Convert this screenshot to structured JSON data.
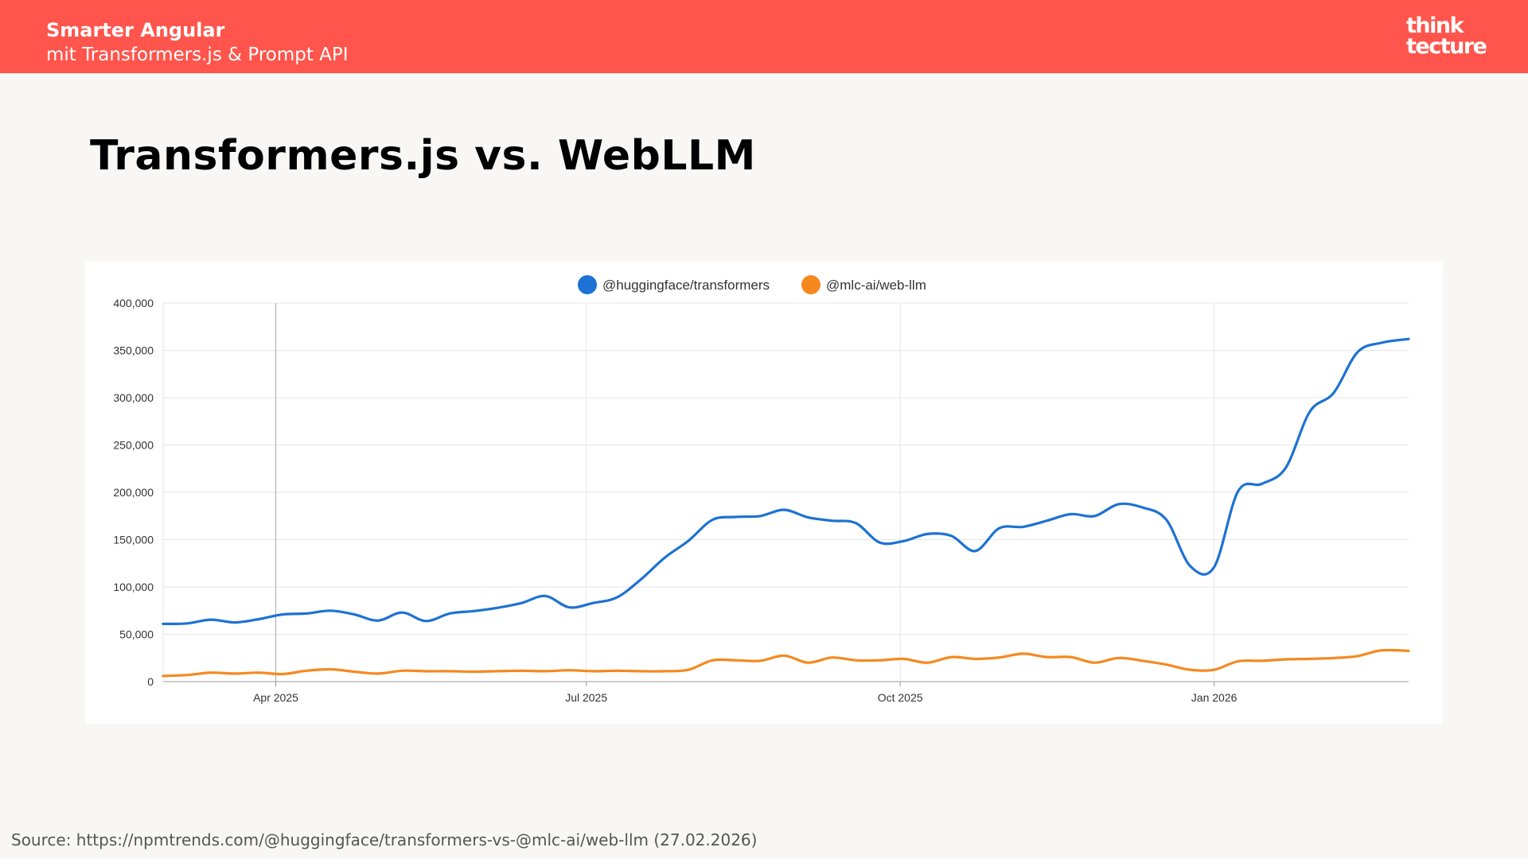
{
  "header": {
    "title": "Smarter Angular",
    "subtitle": "mit Transformers.js & Prompt API",
    "logo_line1": "think",
    "logo_line2": "tecture"
  },
  "slide": {
    "title": "Transformers.js vs. WebLLM",
    "source": "Source: https://npmtrends.com/@huggingface/transformers-vs-@mlc-ai/web-llm (27.02.2026)"
  },
  "colors": {
    "header": "#ff554c",
    "series_transformers": "#1d72d3",
    "series_webllm": "#f5891f"
  },
  "chart_data": {
    "type": "line",
    "x_range": [
      "2025-02-27",
      "2026-02-27"
    ],
    "ylim": [
      0,
      400000
    ],
    "y_ticks": [
      0,
      50000,
      100000,
      150000,
      200000,
      250000,
      300000,
      350000,
      400000
    ],
    "y_tick_labels": [
      "0",
      "50,000",
      "100,000",
      "150,000",
      "200,000",
      "250,000",
      "300,000",
      "350,000",
      "400,000"
    ],
    "x_ticks": [
      {
        "date": "2025-04-01",
        "label": "Apr 2025"
      },
      {
        "date": "2025-07-01",
        "label": "Jul 2025"
      },
      {
        "date": "2025-10-01",
        "label": "Oct 2025"
      },
      {
        "date": "2026-01-01",
        "label": "Jan 2026"
      }
    ],
    "grid": true,
    "legend_position": "top-center",
    "series": [
      {
        "name": "@huggingface/transformers",
        "color": "#1d72d3",
        "points": [
          [
            "2025-02-27",
            61000
          ],
          [
            "2025-03-06",
            61500
          ],
          [
            "2025-03-13",
            65500
          ],
          [
            "2025-03-20",
            62500
          ],
          [
            "2025-03-27",
            66000
          ],
          [
            "2025-04-03",
            71000
          ],
          [
            "2025-04-10",
            72000
          ],
          [
            "2025-04-17",
            75000
          ],
          [
            "2025-04-24",
            71000
          ],
          [
            "2025-05-01",
            64500
          ],
          [
            "2025-05-08",
            73000
          ],
          [
            "2025-05-15",
            64000
          ],
          [
            "2025-05-22",
            72000
          ],
          [
            "2025-05-29",
            74500
          ],
          [
            "2025-06-05",
            78000
          ],
          [
            "2025-06-12",
            83000
          ],
          [
            "2025-06-19",
            90500
          ],
          [
            "2025-06-26",
            78500
          ],
          [
            "2025-07-03",
            83000
          ],
          [
            "2025-07-10",
            89000
          ],
          [
            "2025-07-17",
            108000
          ],
          [
            "2025-07-24",
            131000
          ],
          [
            "2025-07-31",
            149000
          ],
          [
            "2025-08-07",
            171000
          ],
          [
            "2025-08-14",
            174000
          ],
          [
            "2025-08-21",
            175000
          ],
          [
            "2025-08-28",
            181500
          ],
          [
            "2025-09-04",
            173500
          ],
          [
            "2025-09-11",
            170000
          ],
          [
            "2025-09-18",
            167500
          ],
          [
            "2025-09-25",
            147000
          ],
          [
            "2025-10-02",
            148500
          ],
          [
            "2025-10-09",
            156000
          ],
          [
            "2025-10-16",
            154000
          ],
          [
            "2025-10-23",
            138000
          ],
          [
            "2025-10-30",
            162000
          ],
          [
            "2025-11-06",
            163500
          ],
          [
            "2025-11-13",
            170000
          ],
          [
            "2025-11-20",
            177000
          ],
          [
            "2025-11-27",
            175000
          ],
          [
            "2025-12-04",
            187500
          ],
          [
            "2025-12-11",
            184000
          ],
          [
            "2025-12-18",
            171000
          ],
          [
            "2025-12-25",
            122000
          ],
          [
            "2026-01-01",
            121000
          ],
          [
            "2026-01-08",
            201000
          ],
          [
            "2026-01-15",
            209000
          ],
          [
            "2026-01-22",
            226000
          ],
          [
            "2026-01-29",
            285000
          ],
          [
            "2026-02-05",
            305000
          ],
          [
            "2026-02-12",
            348000
          ],
          [
            "2026-02-19",
            358000
          ],
          [
            "2026-02-27",
            362000
          ]
        ]
      },
      {
        "name": "@mlc-ai/web-llm",
        "color": "#f5891f",
        "points": [
          [
            "2025-02-27",
            6000
          ],
          [
            "2025-03-06",
            7000
          ],
          [
            "2025-03-13",
            9500
          ],
          [
            "2025-03-20",
            8500
          ],
          [
            "2025-03-27",
            9500
          ],
          [
            "2025-04-03",
            8000
          ],
          [
            "2025-04-10",
            11500
          ],
          [
            "2025-04-17",
            13000
          ],
          [
            "2025-04-24",
            10500
          ],
          [
            "2025-05-01",
            8500
          ],
          [
            "2025-05-08",
            11500
          ],
          [
            "2025-05-15",
            11000
          ],
          [
            "2025-05-22",
            11000
          ],
          [
            "2025-05-29",
            10500
          ],
          [
            "2025-06-05",
            11000
          ],
          [
            "2025-06-12",
            11500
          ],
          [
            "2025-06-19",
            11000
          ],
          [
            "2025-06-26",
            12000
          ],
          [
            "2025-07-03",
            11000
          ],
          [
            "2025-07-10",
            11500
          ],
          [
            "2025-07-17",
            11000
          ],
          [
            "2025-07-24",
            11000
          ],
          [
            "2025-07-31",
            12500
          ],
          [
            "2025-08-07",
            22500
          ],
          [
            "2025-08-14",
            22500
          ],
          [
            "2025-08-21",
            22000
          ],
          [
            "2025-08-28",
            27500
          ],
          [
            "2025-09-04",
            20000
          ],
          [
            "2025-09-11",
            25500
          ],
          [
            "2025-09-18",
            22500
          ],
          [
            "2025-09-25",
            22500
          ],
          [
            "2025-10-02",
            24000
          ],
          [
            "2025-10-09",
            20000
          ],
          [
            "2025-10-16",
            26000
          ],
          [
            "2025-10-23",
            24000
          ],
          [
            "2025-10-30",
            25500
          ],
          [
            "2025-11-06",
            29500
          ],
          [
            "2025-11-13",
            26000
          ],
          [
            "2025-11-20",
            26000
          ],
          [
            "2025-11-27",
            20000
          ],
          [
            "2025-12-04",
            25000
          ],
          [
            "2025-12-11",
            22000
          ],
          [
            "2025-12-18",
            18000
          ],
          [
            "2025-12-25",
            12500
          ],
          [
            "2026-01-01",
            12500
          ],
          [
            "2026-01-08",
            21500
          ],
          [
            "2026-01-15",
            22000
          ],
          [
            "2026-01-22",
            23500
          ],
          [
            "2026-01-29",
            24000
          ],
          [
            "2026-02-05",
            25000
          ],
          [
            "2026-02-12",
            27000
          ],
          [
            "2026-02-19",
            33000
          ],
          [
            "2026-02-27",
            32500
          ]
        ]
      }
    ]
  }
}
